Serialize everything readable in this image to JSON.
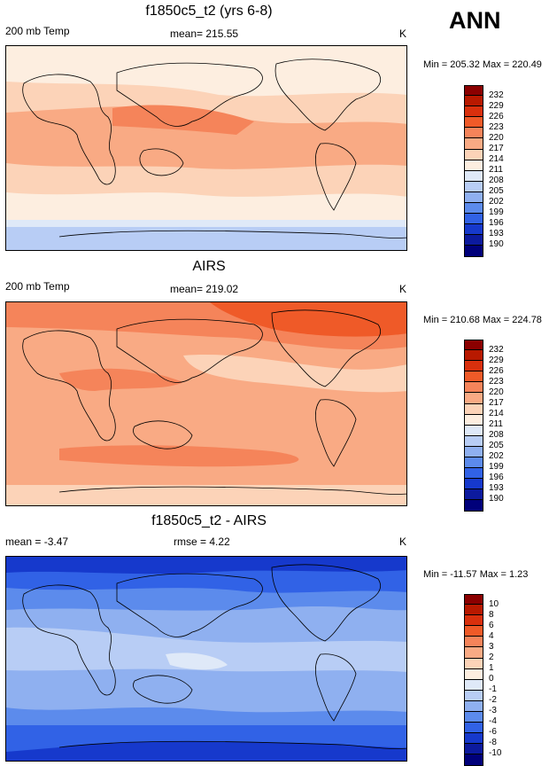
{
  "season_label": "ANN",
  "panels": [
    {
      "title": "f1850c5_t2 (yrs 6-8)",
      "left_label": "200 mb Temp",
      "center_label": "mean= 215.55",
      "unit": "K",
      "minmax": "Min = 205.32 Max = 220.49",
      "colorbar_labels": [
        "232",
        "229",
        "226",
        "223",
        "220",
        "217",
        "214",
        "211",
        "208",
        "205",
        "202",
        "199",
        "196",
        "193",
        "190"
      ]
    },
    {
      "title": "AIRS",
      "left_label": "200 mb Temp",
      "center_label": "mean= 219.02",
      "unit": "K",
      "minmax": "Min = 210.68 Max = 224.78",
      "colorbar_labels": [
        "232",
        "229",
        "226",
        "223",
        "220",
        "217",
        "214",
        "211",
        "208",
        "205",
        "202",
        "199",
        "196",
        "193",
        "190"
      ]
    },
    {
      "title": "f1850c5_t2 - AIRS",
      "left_label": "mean =  -3.47",
      "center_label": "rmse =   4.22",
      "unit": "K",
      "minmax": "Min = -11.57 Max =   1.23",
      "colorbar_labels": [
        "10",
        "8",
        "6",
        "4",
        "3",
        "2",
        "1",
        "0",
        "-1",
        "-2",
        "-3",
        "-4",
        "-6",
        "-8",
        "-10"
      ]
    }
  ],
  "colors": {
    "scale": [
      "#8b0000",
      "#b81900",
      "#d9300d",
      "#ef5a28",
      "#f5845a",
      "#f9aa84",
      "#fcd3b8",
      "#fdeee0",
      "#dfe9f8",
      "#b8cdf5",
      "#8fb0f0",
      "#5c8bec",
      "#3162e6",
      "#1639cc",
      "#0c1a9e",
      "#00007a"
    ]
  }
}
